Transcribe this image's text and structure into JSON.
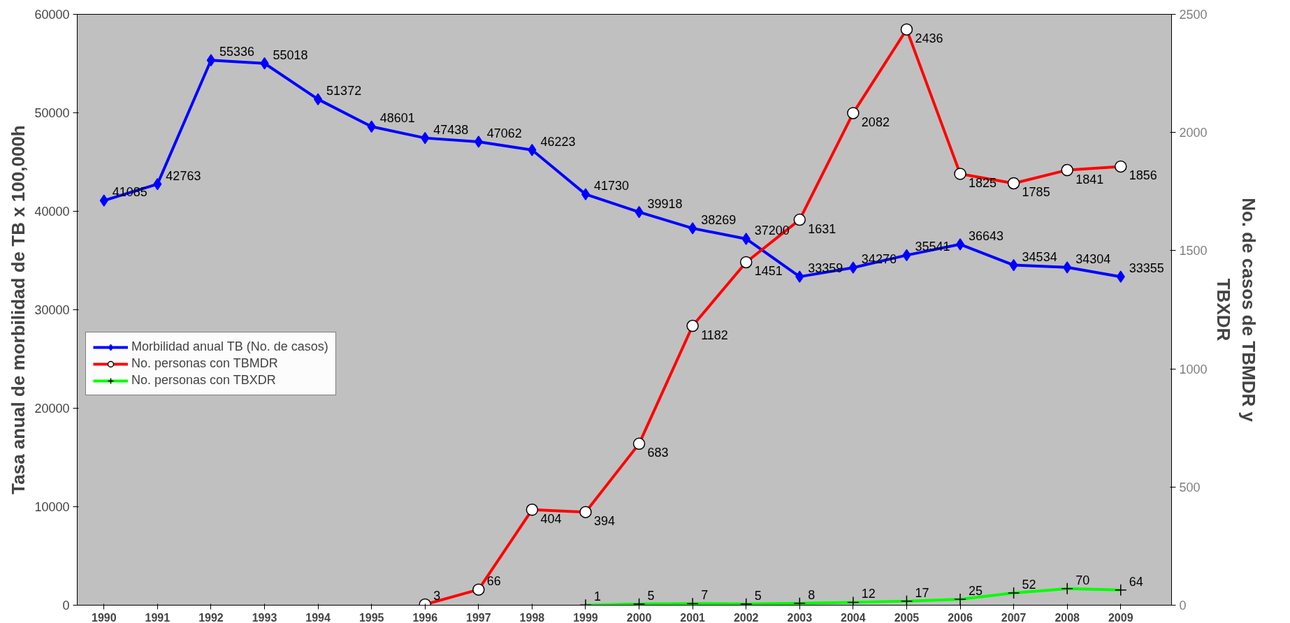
{
  "chart_data": {
    "type": "line",
    "ylabel": "Tasa anual de morbilidad de TB x 100,000h",
    "y2label": "No. de casos de TBMDR y TBXDR",
    "categories": [
      "1990",
      "1991",
      "1992",
      "1993",
      "1994",
      "1995",
      "1996",
      "1997",
      "1998",
      "1999",
      "2000",
      "2001",
      "2002",
      "2003",
      "2004",
      "2005",
      "2006",
      "2007",
      "2008",
      "2009"
    ],
    "ylim": [
      0,
      60000
    ],
    "yticks": [
      0,
      10000,
      20000,
      30000,
      40000,
      50000,
      60000
    ],
    "y2lim": [
      0,
      2500
    ],
    "y2ticks": [
      0,
      500,
      1000,
      1500,
      2000,
      2500
    ],
    "series": [
      {
        "name": "Morbilidad anual TB (No. de casos)",
        "color": "#0000ff",
        "marker": "diamond",
        "values": [
          41085,
          42763,
          55336,
          55018,
          51372,
          48601,
          47438,
          47062,
          46223,
          41730,
          39918,
          38269,
          37200,
          33359,
          34276,
          35541,
          36643,
          34534,
          34304,
          33355
        ]
      },
      {
        "name": "No. personas con TBMDR",
        "color": "#ff0000",
        "marker": "circle",
        "axis": "y2",
        "values": [
          null,
          null,
          null,
          null,
          null,
          null,
          3,
          66,
          404,
          394,
          683,
          1182,
          1451,
          1631,
          2082,
          2436,
          1825,
          1785,
          1841,
          1856
        ]
      },
      {
        "name": "No. personas con TBXDR",
        "color": "#00ff00",
        "marker": "cross",
        "axis": "y2",
        "values": [
          null,
          null,
          null,
          null,
          null,
          null,
          null,
          null,
          null,
          1,
          5,
          7,
          5,
          8,
          12,
          17,
          25,
          52,
          70,
          64
        ]
      }
    ],
    "data_labels": true,
    "legend": "left",
    "grid": false
  }
}
